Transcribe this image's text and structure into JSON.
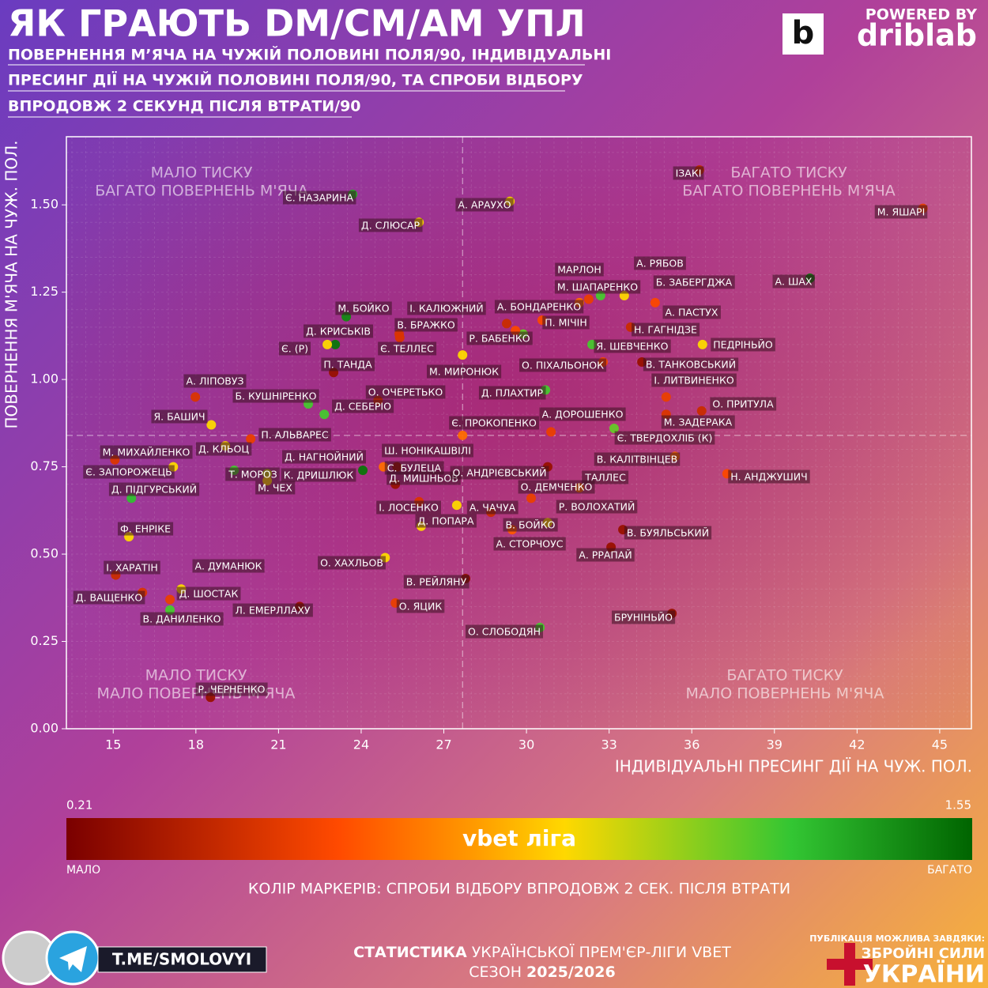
{
  "header": {
    "title": "ЯК ГРАЮТЬ DM/CM/AM УПЛ",
    "subtitle_lines": [
      "ПОВЕРНЕННЯ М’ЯЧА НА ЧУЖІЙ ПОЛОВИНІ ПОЛЯ/90, ІНДИВІДУАЛЬНІ",
      "ПРЕСИНГ ДІЇ НА ЧУЖІЙ ПОЛОВИНІ ПОЛЯ/90, ТА СПРОБИ ВІДБОРУ",
      "ВПРОДОВЖ 2 СЕКУНД ПІСЛЯ ВТРАТИ/90"
    ],
    "powered_by": "POWERED BY",
    "brand": "driblab"
  },
  "chart_data": {
    "type": "scatter",
    "x_label": "ІНДИВІДУАЛЬНІ ПРЕСИНГ ДІЇ НА ЧУЖ. ПОЛ.",
    "y_label": "ПОВЕРНЕННЯ М'ЯЧА НА ЧУЖ. ПОЛ.",
    "xlim": [
      13.3,
      46.15
    ],
    "ylim": [
      0,
      1.695
    ],
    "xticks": [
      15,
      18,
      21,
      24,
      27,
      30,
      33,
      36,
      39,
      42,
      45
    ],
    "yticks": [
      {
        "value": 0,
        "label": "0.00"
      },
      {
        "value": 0.25,
        "label": "0.25"
      },
      {
        "value": 0.5,
        "label": "0.50"
      },
      {
        "value": 0.75,
        "label": "0.75"
      },
      {
        "value": 1,
        "label": "1.00"
      },
      {
        "value": 1.25,
        "label": "1.25"
      },
      {
        "value": 1.5,
        "label": "1.50"
      }
    ],
    "grid": true,
    "x_mean": 27.68,
    "y_mean": 0.84,
    "quadrants": [
      [
        "МАЛО ТИСКУ",
        "БАГАТО ПОВЕРНЕНЬ М'ЯЧА"
      ],
      [
        "БАГАТО ТИСКУ",
        "БАГАТО ПОВЕРНЕНЬ М'ЯЧА"
      ],
      [
        "МАЛО ТИСКУ",
        "МАЛО ПОВЕРНЕНЬ М'ЯЧА"
      ],
      [
        "БАГАТО ТИСКУ",
        "МАЛО ПОВЕРНЕНЬ М'ЯЧА"
      ]
    ],
    "point_labels": [
      "Є. НАЗАРИНА",
      "ІЗАКІ",
      "М. ЯШАРІ",
      "А. АРАУХО",
      "Д. СЛЮСАР",
      "А. ШАХ",
      "МАРЛОН",
      "М. ШАПАРЕНКО",
      "А. РЯБОВ",
      "Б. ЗАБЕРГДЖА",
      "А. ПАСТУХ",
      "Н. ГАГНІДЗЕ",
      "П. МІЧІН",
      "А. БОНДАРЕНКО",
      "І. КАЛЮЖНИЙ",
      "Р. БАБЕНКО",
      "М. БОЙКО",
      "В. БРАЖКО",
      "Д. КРИСЬКІВ",
      "Є. (Р)",
      "Є. ТЕЛЛЕС",
      "М. МИРОНЮК",
      "Я. ШЕВЧЕНКО",
      "ПЕДРІНЬЙО",
      "П. ТАНДА",
      "О. ПІХАЛЬОНОК",
      "В. ТАНКОВСЬКИЙ",
      "А. ЛІПОВУЗ",
      "Б. КУШНІРЕНКО",
      "Д. СЕБЕРІО",
      "О. ОЧЕРЕТЬКО",
      "Д. ПЛАХТИР",
      "І. ЛИТВИНЕНКО",
      "О. ПРИТУЛА",
      "М. ЗАДЕРАКА",
      "Я. БАШИЧ",
      "Є. ПРОКОПЕНКО",
      "А. ДОРОШЕНКО",
      "Є. ТВЕРДОХЛІБ (К)",
      "П. АЛЬВАРЕС",
      "Д. КЛЬОЦ",
      "М. МИХАЙЛЕНКО",
      "Є. ЗАПОРОЖЕЦЬ",
      "Д. НАГНОЙНИЙ",
      "Ш. НОНІКАШВІЛІ",
      "С. БУЛЕЦА",
      "Д. МИШНЬОВ",
      "О. АНДРІЄВСЬКИЙ",
      "В. КАЛІТВІНЦЕВ",
      "Н. АНДЖУШИЧ",
      "Т. МОРОЗ",
      "К. ДРИШЛЮК",
      "М. ЧЕХ",
      "ТАЛЛЕС",
      "О. ДЕМЧЕНКО",
      "Д. ПІДГУРСЬКИЙ",
      "І. ЛОСЕНКО",
      "А. ЧАЧУА",
      "Д. ПОПАРА",
      "В. БОЙКО",
      "Р. ВОЛОХАТИЙ",
      "А. СТОРЧОУС",
      "В. БУЯЛЬСЬКИЙ",
      "А. РРАПАЙ",
      "Ф. ЕНРІКЕ",
      "О. ХАХЛЬОВ",
      "І. ХАРАТІН",
      "А. ДУМАНЮК",
      "Д. ВАЩЕНКО",
      "Д. ШОСТАК",
      "В. ДАНИЛЕНКО",
      "Л. ЕМЕРЛЛАХУ",
      "В. РЕЙЛЯНУ",
      "О. ЯЦИК",
      "О. СЛОБОДЯН",
      "БРУНІНЬЙО",
      "Р. ЧЕРНЕНКО"
    ],
    "x": [
      23.69,
      36.28,
      44.39,
      29.4,
      26.1,
      40.29,
      31.92,
      32.26,
      33.55,
      32.69,
      34.67,
      33.78,
      30.57,
      29.88,
      29.28,
      29.6,
      23.46,
      25.38,
      23.06,
      22.77,
      25.4,
      27.68,
      32.38,
      36.39,
      23.0,
      32.78,
      34.19,
      17.98,
      22.08,
      22.66,
      24.61,
      30.69,
      35.07,
      36.36,
      35.07,
      18.56,
      27.68,
      30.89,
      33.18,
      19.99,
      19.07,
      15.06,
      17.18,
      24.06,
      24.81,
      25.3,
      25.24,
      30.77,
      35.39,
      37.28,
      19.39,
      20.59,
      20.59,
      31.92,
      30.17,
      15.66,
      26.1,
      27.47,
      26.18,
      28.71,
      30.77,
      29.48,
      33.5,
      33.07,
      15.57,
      24.87,
      15.09,
      17.47,
      16.06,
      17.06,
      17.06,
      21.77,
      27.79,
      25.24,
      30.49,
      35.28,
      18.53
    ],
    "y": [
      1.53,
      1.6,
      1.49,
      1.51,
      1.45,
      1.29,
      1.22,
      1.23,
      1.24,
      1.24,
      1.22,
      1.15,
      1.17,
      1.13,
      1.16,
      1.14,
      1.18,
      1.13,
      1.1,
      1.1,
      1.12,
      1.07,
      1.1,
      1.1,
      1.02,
      1.05,
      1.05,
      0.95,
      0.93,
      0.9,
      0.94,
      0.97,
      0.95,
      0.91,
      0.9,
      0.87,
      0.84,
      0.85,
      0.86,
      0.83,
      0.81,
      0.77,
      0.75,
      0.74,
      0.75,
      0.75,
      0.7,
      0.75,
      0.78,
      0.73,
      0.74,
      0.73,
      0.71,
      0.69,
      0.66,
      0.66,
      0.65,
      0.64,
      0.58,
      0.62,
      0.59,
      0.57,
      0.57,
      0.52,
      0.55,
      0.49,
      0.44,
      0.4,
      0.39,
      0.37,
      0.34,
      0.35,
      0.43,
      0.36,
      0.29,
      0.33,
      0.09
    ],
    "color_values": [
      1.35,
      0.45,
      0.55,
      0.95,
      0.95,
      1.5,
      0.7,
      0.55,
      0.95,
      1.25,
      0.6,
      0.45,
      0.6,
      1.2,
      0.45,
      0.6,
      1.45,
      0.5,
      1.5,
      0.95,
      0.5,
      0.95,
      1.25,
      0.95,
      0.3,
      0.6,
      0.3,
      0.5,
      1.25,
      1.25,
      0.45,
      1.25,
      0.55,
      0.45,
      0.5,
      0.95,
      0.7,
      0.55,
      1.2,
      0.55,
      0.95,
      0.5,
      0.95,
      1.5,
      0.7,
      0.3,
      0.3,
      0.3,
      0.7,
      0.6,
      1.25,
      1.05,
      0.95,
      0.7,
      0.55,
      1.3,
      0.5,
      0.95,
      0.95,
      0.45,
      0.95,
      0.65,
      0.3,
      0.3,
      0.95,
      0.95,
      0.45,
      0.95,
      0.5,
      0.55,
      1.25,
      0.3,
      0.3,
      0.55,
      1.25,
      0.3,
      0.3
    ],
    "colorbar": {
      "lim": [
        0.21,
        1.55
      ],
      "low_label": "МАЛО",
      "high_label": "БАГАТО",
      "title": "КОЛІР МАРКЕРІВ: СПРОБИ ВІДБОРУ ВПРОДОВЖ 2 СЕК. ПІСЛЯ ВТРАТИ",
      "logo": "vbet ліга"
    }
  },
  "footer": {
    "handle": "T.ME/SMOLOVYI",
    "stats_bold": "СТАТИСТИКА",
    "stats_rest": " УКРАЇНСЬКОЇ ПРЕМ'ЄР-ЛІГИ VBET",
    "season_label": "СЕЗОН ",
    "season": "2025/2026",
    "thanks": "ПУБЛІКАЦІЯ МОЖЛИВА ЗАВДЯКИ:",
    "army1": "ЗБРОЙНІ СИЛИ",
    "army2": "УКРАЇНИ"
  }
}
